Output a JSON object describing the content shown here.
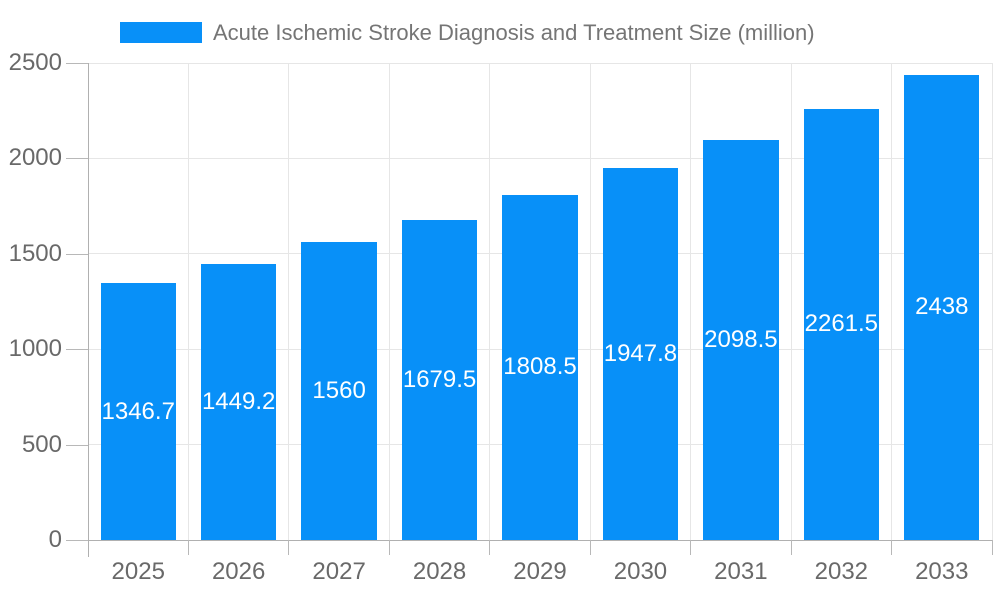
{
  "chart_data": {
    "type": "bar",
    "title": "Acute Ischemic Stroke Diagnosis and Treatment Size (million)",
    "legend_entries": [
      "Acute Ischemic Stroke Diagnosis and Treatment Size (million)"
    ],
    "legend_position": "top-left",
    "categories": [
      "2025",
      "2026",
      "2027",
      "2028",
      "2029",
      "2030",
      "2031",
      "2032",
      "2033"
    ],
    "values": [
      1346.7,
      1449.2,
      1560,
      1679.5,
      1808.5,
      1947.8,
      2098.5,
      2261.5,
      2438
    ],
    "value_labels": [
      "1346.7",
      "1449.2",
      "1560",
      "1679.5",
      "1808.5",
      "1947.8",
      "2098.5",
      "2261.5",
      "2438"
    ],
    "xlabel": "",
    "ylabel": "",
    "ylim": [
      0,
      2500
    ],
    "yticks": [
      0,
      500,
      1000,
      1500,
      2000,
      2500
    ],
    "grid": true,
    "colors": {
      "bar": "#0890f8",
      "bar_label": "#ffffff",
      "axis_text": "#696969",
      "title_text": "#757575",
      "gridline": "#e6e6e6",
      "axis_line": "#b0b0b0",
      "tick": "#b8b8b8",
      "background": "#ffffff"
    }
  }
}
